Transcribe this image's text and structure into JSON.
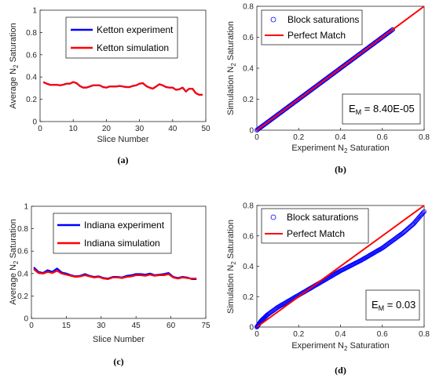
{
  "chart_data": [
    {
      "panel": "a",
      "type": "line",
      "xlabel": "Slice Number",
      "ylabel": [
        "Average N",
        "2",
        " Saturation"
      ],
      "xlim": [
        0,
        50
      ],
      "ylim": [
        0,
        1
      ],
      "xticks": [
        0,
        10,
        20,
        30,
        40,
        50
      ],
      "yticks": [
        0,
        0.2,
        0.4,
        0.6,
        0.8,
        1
      ],
      "legend_position": "top-center",
      "series": [
        {
          "name": "Ketton experiment",
          "color": "#0000ff",
          "x": [
            1,
            2,
            3,
            4,
            5,
            6,
            7,
            8,
            9,
            10,
            11,
            12,
            13,
            14,
            15,
            16,
            17,
            18,
            19,
            20,
            21,
            22,
            23,
            24,
            25,
            26,
            27,
            28,
            29,
            30,
            31,
            32,
            33,
            34,
            35,
            36,
            37,
            38,
            39,
            40,
            41,
            42,
            43,
            44,
            45,
            46,
            47,
            48,
            49
          ],
          "y": [
            0.355,
            0.34,
            0.33,
            0.33,
            0.33,
            0.325,
            0.33,
            0.34,
            0.34,
            0.355,
            0.345,
            0.32,
            0.305,
            0.305,
            0.315,
            0.325,
            0.325,
            0.325,
            0.31,
            0.305,
            0.315,
            0.315,
            0.315,
            0.32,
            0.315,
            0.31,
            0.31,
            0.32,
            0.325,
            0.34,
            0.345,
            0.32,
            0.305,
            0.295,
            0.315,
            0.335,
            0.325,
            0.31,
            0.305,
            0.305,
            0.285,
            0.29,
            0.305,
            0.27,
            0.295,
            0.295,
            0.255,
            0.24,
            0.24
          ]
        },
        {
          "name": "Ketton simulation",
          "color": "#ff0000",
          "x": [
            1,
            2,
            3,
            4,
            5,
            6,
            7,
            8,
            9,
            10,
            11,
            12,
            13,
            14,
            15,
            16,
            17,
            18,
            19,
            20,
            21,
            22,
            23,
            24,
            25,
            26,
            27,
            28,
            29,
            30,
            31,
            32,
            33,
            34,
            35,
            36,
            37,
            38,
            39,
            40,
            41,
            42,
            43,
            44,
            45,
            46,
            47,
            48,
            49
          ],
          "y": [
            0.355,
            0.34,
            0.33,
            0.33,
            0.33,
            0.325,
            0.33,
            0.34,
            0.34,
            0.355,
            0.345,
            0.32,
            0.305,
            0.305,
            0.315,
            0.325,
            0.325,
            0.325,
            0.31,
            0.305,
            0.315,
            0.315,
            0.315,
            0.32,
            0.315,
            0.31,
            0.31,
            0.32,
            0.325,
            0.34,
            0.345,
            0.32,
            0.305,
            0.295,
            0.315,
            0.335,
            0.325,
            0.31,
            0.305,
            0.305,
            0.285,
            0.29,
            0.305,
            0.27,
            0.295,
            0.295,
            0.255,
            0.24,
            0.24
          ]
        }
      ]
    },
    {
      "panel": "b",
      "type": "scatter",
      "xlabel": [
        "Experiment N",
        "2",
        " Saturation"
      ],
      "ylabel": [
        "Simulation N",
        "2",
        " Saturation"
      ],
      "xlim": [
        0,
        0.8
      ],
      "ylim": [
        0,
        0.8
      ],
      "xticks": [
        0,
        0.2,
        0.4,
        0.6,
        0.8
      ],
      "yticks": [
        0,
        0.2,
        0.4,
        0.6,
        0.8
      ],
      "legend_position": "top-left",
      "annotation": [
        "E",
        "M",
        " = 8.40E-05"
      ],
      "series": [
        {
          "name": "Block saturations",
          "color": "#0000ff",
          "marker": "circle",
          "x_range": [
            0,
            0.65
          ],
          "relation": "y = x"
        },
        {
          "name": "Perfect Match",
          "color": "#ff0000",
          "x": [
            0,
            0.8
          ],
          "y": [
            0,
            0.8
          ]
        }
      ]
    },
    {
      "panel": "c",
      "type": "line",
      "xlabel": "Slice Number",
      "ylabel": [
        "Average N",
        "2",
        " Saturation"
      ],
      "xlim": [
        0,
        75
      ],
      "ylim": [
        0,
        1
      ],
      "xticks": [
        0,
        15,
        30,
        45,
        60,
        75
      ],
      "yticks": [
        0,
        0.2,
        0.4,
        0.6,
        0.8,
        1
      ],
      "legend_position": "top-center",
      "series": [
        {
          "name": "Indiana experiment",
          "color": "#0000ff",
          "x": [
            1,
            3,
            5,
            7,
            9,
            11,
            13,
            15,
            17,
            19,
            21,
            23,
            25,
            27,
            29,
            31,
            33,
            35,
            37,
            39,
            41,
            43,
            45,
            47,
            49,
            51,
            53,
            55,
            57,
            59,
            61,
            63,
            65,
            67,
            69,
            71
          ],
          "y": [
            0.455,
            0.415,
            0.405,
            0.43,
            0.415,
            0.445,
            0.41,
            0.4,
            0.385,
            0.375,
            0.38,
            0.395,
            0.38,
            0.37,
            0.375,
            0.36,
            0.355,
            0.37,
            0.37,
            0.365,
            0.38,
            0.385,
            0.395,
            0.395,
            0.39,
            0.4,
            0.385,
            0.39,
            0.395,
            0.405,
            0.37,
            0.36,
            0.37,
            0.365,
            0.35,
            0.35
          ]
        },
        {
          "name": "Indiana simulation",
          "color": "#ff0000",
          "x": [
            1,
            3,
            5,
            7,
            9,
            11,
            13,
            15,
            17,
            19,
            21,
            23,
            25,
            27,
            29,
            31,
            33,
            35,
            37,
            39,
            41,
            43,
            45,
            47,
            49,
            51,
            53,
            55,
            57,
            59,
            61,
            63,
            65,
            67,
            69,
            71
          ],
          "y": [
            0.44,
            0.405,
            0.4,
            0.415,
            0.405,
            0.425,
            0.4,
            0.39,
            0.38,
            0.37,
            0.375,
            0.385,
            0.375,
            0.365,
            0.37,
            0.355,
            0.35,
            0.365,
            0.365,
            0.36,
            0.37,
            0.375,
            0.385,
            0.385,
            0.38,
            0.39,
            0.38,
            0.385,
            0.385,
            0.395,
            0.365,
            0.355,
            0.365,
            0.36,
            0.355,
            0.355
          ]
        }
      ]
    },
    {
      "panel": "d",
      "type": "scatter",
      "xlabel": [
        "Experiment N",
        "2",
        " Saturation"
      ],
      "ylabel": [
        "Simulation N",
        "2",
        " Saturation"
      ],
      "xlim": [
        0,
        0.8
      ],
      "ylim": [
        0,
        0.8
      ],
      "xticks": [
        0,
        0.2,
        0.4,
        0.6,
        0.8
      ],
      "yticks": [
        0,
        0.2,
        0.4,
        0.6,
        0.8
      ],
      "legend_position": "top-left",
      "annotation": [
        "E",
        "M",
        " = 0.03"
      ],
      "series": [
        {
          "name": "Block saturations",
          "color": "#0000ff",
          "marker": "circle",
          "x": [
            0.0,
            0.02,
            0.05,
            0.1,
            0.15,
            0.2,
            0.25,
            0.3,
            0.35,
            0.4,
            0.45,
            0.5,
            0.55,
            0.6,
            0.65,
            0.7,
            0.75,
            0.8
          ],
          "y": [
            0.0,
            0.04,
            0.08,
            0.13,
            0.17,
            0.21,
            0.25,
            0.29,
            0.33,
            0.37,
            0.405,
            0.44,
            0.48,
            0.52,
            0.57,
            0.62,
            0.68,
            0.76
          ]
        },
        {
          "name": "Perfect Match",
          "color": "#ff0000",
          "x": [
            0,
            0.8
          ],
          "y": [
            0,
            0.8
          ]
        }
      ]
    }
  ],
  "captions": [
    "(a)",
    "(b)",
    "(c)",
    "(d)"
  ]
}
